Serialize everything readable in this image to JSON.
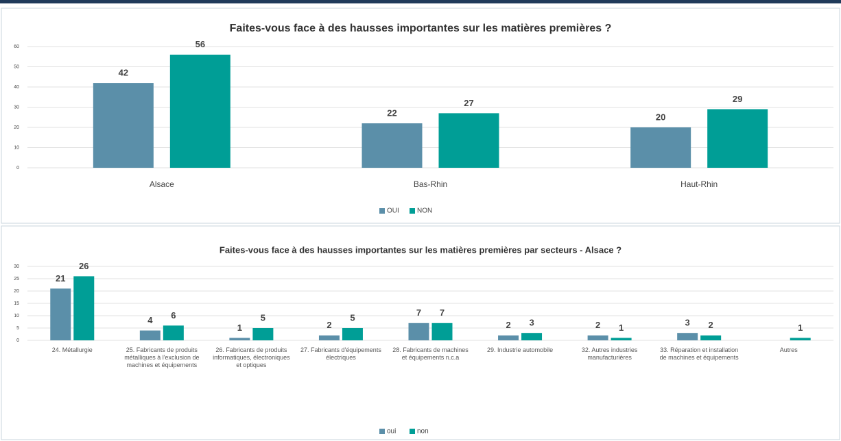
{
  "chart_data": [
    {
      "type": "bar",
      "title": "Faites-vous face à des hausses importantes sur les matières premières ?",
      "categories": [
        "Alsace",
        "Bas-Rhin",
        "Haut-Rhin"
      ],
      "series": [
        {
          "name": "OUI",
          "color": "#5b8fa9",
          "values": [
            42,
            22,
            20
          ]
        },
        {
          "name": "NON",
          "color": "#009e96",
          "values": [
            56,
            27,
            29
          ]
        }
      ],
      "ylim": [
        0,
        60
      ],
      "yticks": [
        0,
        10,
        20,
        30,
        40,
        50,
        60
      ],
      "grid": true,
      "legend": "bottom"
    },
    {
      "type": "bar",
      "title": "Faites-vous face à des hausses importantes sur les matières premières par secteurs -  Alsace ?",
      "categories": [
        "24. Métallurgie",
        "25. Fabricants de produits métalliques à l'exclusion de machines et équipements",
        "26. Fabricants de produits informatiques, électroniques et optiques",
        "27. Fabricants d'équipements électriques",
        "28. Fabricants de machines et équipements n.c.a",
        "29. Industrie automobile",
        "32. Autres industries manufacturières",
        "33. Réparation et installation de machines et équipements",
        "Autres"
      ],
      "series": [
        {
          "name": "oui",
          "color": "#5b8fa9",
          "values": [
            21,
            4,
            1,
            2,
            7,
            2,
            2,
            3,
            null
          ]
        },
        {
          "name": "non",
          "color": "#009e96",
          "values": [
            26,
            6,
            5,
            5,
            7,
            3,
            1,
            2,
            1
          ]
        }
      ],
      "ylim": [
        0,
        30
      ],
      "yticks": [
        0,
        5,
        10,
        15,
        20,
        25,
        30
      ],
      "grid": true,
      "legend": "bottom"
    }
  ]
}
